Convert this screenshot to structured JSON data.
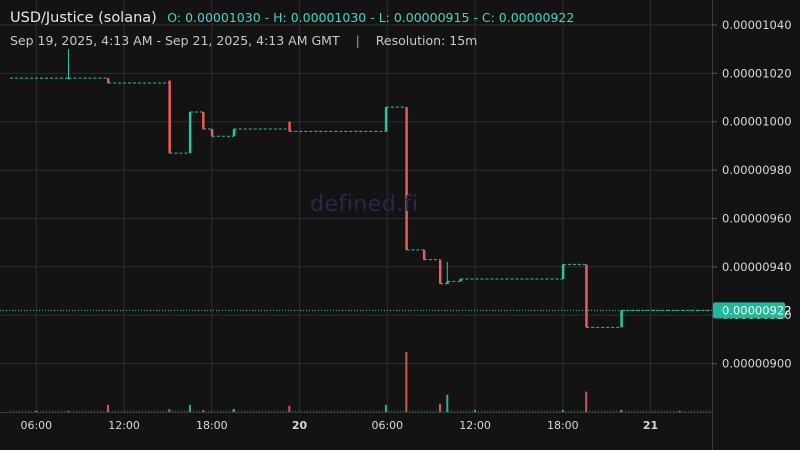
{
  "header": {
    "title": "USD/Justice (solana)",
    "ohlc_text": "O: 0.00001030 - H: 0.00001030 - L: 0.00000915 - C: 0.00000922",
    "range_text": "Sep 19, 2025, 4:13 AM - Sep 21, 2025, 4:13 AM GMT",
    "separator": "|",
    "resolution_text": "Resolution: 15m"
  },
  "watermark": "defined.fi",
  "colors": {
    "up": "#26c6a4",
    "down": "#ef5a5a",
    "background": "#131313",
    "grid": "#2e2e2e",
    "price_line": "#26c6a4"
  },
  "chart_data": {
    "type": "candlestick",
    "title": "USD/Justice (solana)",
    "y_axis_ticks": [
      "0.00001040",
      "0.00001020",
      "0.00001000",
      "0.00000980",
      "0.00000960",
      "0.00000940",
      "0.00000920",
      "0.00000900"
    ],
    "ylim": [
      8.8e-06,
      1.047e-05
    ],
    "x_axis_ticks": [
      {
        "label": "06:00",
        "hour": 6,
        "major": false
      },
      {
        "label": "12:00",
        "hour": 12,
        "major": false
      },
      {
        "label": "18:00",
        "hour": 18,
        "major": false
      },
      {
        "label": "20",
        "hour": 24,
        "major": true
      },
      {
        "label": "06:00",
        "hour": 30,
        "major": false
      },
      {
        "label": "12:00",
        "hour": 36,
        "major": false
      },
      {
        "label": "18:00",
        "hour": 42,
        "major": false
      },
      {
        "label": "21",
        "hour": 48,
        "major": true
      }
    ],
    "xlim_hours": [
      4.2,
      52.2
    ],
    "current_price": "0.00000922",
    "current_price_value": 9.22e-06,
    "candles": [
      {
        "hour": 8.2,
        "o": 1.018e-05,
        "h": 1.03e-05,
        "l": 1.018e-05,
        "c": 1.018e-05
      },
      {
        "hour": 10.9,
        "o": 1.018e-05,
        "h": 1.018e-05,
        "l": 1.016e-05,
        "c": 1.016e-05
      },
      {
        "hour": 15.1,
        "o": 1.017e-05,
        "h": 1.017e-05,
        "l": 9.87e-06,
        "c": 9.87e-06
      },
      {
        "hour": 16.5,
        "o": 9.87e-06,
        "h": 1.004e-05,
        "l": 9.87e-06,
        "c": 1.004e-05
      },
      {
        "hour": 17.4,
        "o": 1.004e-05,
        "h": 1.004e-05,
        "l": 9.97e-06,
        "c": 9.97e-06
      },
      {
        "hour": 18.0,
        "o": 9.97e-06,
        "h": 9.97e-06,
        "l": 9.94e-06,
        "c": 9.94e-06
      },
      {
        "hour": 19.5,
        "o": 9.94e-06,
        "h": 9.97e-06,
        "l": 9.94e-06,
        "c": 9.97e-06
      },
      {
        "hour": 23.3,
        "o": 1e-05,
        "h": 1e-05,
        "l": 9.96e-06,
        "c": 9.96e-06
      },
      {
        "hour": 29.9,
        "o": 9.96e-06,
        "h": 1.006e-05,
        "l": 9.96e-06,
        "c": 1.006e-05
      },
      {
        "hour": 31.3,
        "o": 1.006e-05,
        "h": 1.006e-05,
        "l": 9.47e-06,
        "c": 9.47e-06
      },
      {
        "hour": 32.5,
        "o": 9.47e-06,
        "h": 9.47e-06,
        "l": 9.43e-06,
        "c": 9.43e-06
      },
      {
        "hour": 33.6,
        "o": 9.43e-06,
        "h": 9.43e-06,
        "l": 9.33e-06,
        "c": 9.33e-06
      },
      {
        "hour": 34.1,
        "o": 9.33e-06,
        "h": 9.42e-06,
        "l": 9.33e-06,
        "c": 9.34e-06
      },
      {
        "hour": 35.0,
        "o": 9.34e-06,
        "h": 9.35e-06,
        "l": 9.34e-06,
        "c": 9.35e-06
      },
      {
        "hour": 42.0,
        "o": 9.35e-06,
        "h": 9.41e-06,
        "l": 9.35e-06,
        "c": 9.41e-06
      },
      {
        "hour": 43.6,
        "o": 9.41e-06,
        "h": 9.41e-06,
        "l": 9.15e-06,
        "c": 9.15e-06
      },
      {
        "hour": 46.0,
        "o": 9.15e-06,
        "h": 9.22e-06,
        "l": 9.15e-06,
        "c": 9.22e-06
      }
    ],
    "volume_bars": [
      {
        "hour": 6.0,
        "v": 1,
        "up": true
      },
      {
        "hour": 8.2,
        "v": 1,
        "up": false
      },
      {
        "hour": 10.9,
        "v": 7,
        "up": false
      },
      {
        "hour": 15.1,
        "v": 3,
        "up": false
      },
      {
        "hour": 16.5,
        "v": 7,
        "up": true
      },
      {
        "hour": 17.4,
        "v": 2,
        "up": false
      },
      {
        "hour": 19.5,
        "v": 3,
        "up": true
      },
      {
        "hour": 23.3,
        "v": 6,
        "up": false
      },
      {
        "hour": 29.9,
        "v": 7,
        "up": true
      },
      {
        "hour": 31.3,
        "v": 59,
        "up": false
      },
      {
        "hour": 33.6,
        "v": 8,
        "up": false
      },
      {
        "hour": 34.1,
        "v": 17,
        "up": true
      },
      {
        "hour": 36.0,
        "v": 2,
        "up": true
      },
      {
        "hour": 42.0,
        "v": 2,
        "up": true
      },
      {
        "hour": 43.6,
        "v": 20,
        "up": false
      },
      {
        "hour": 46.0,
        "v": 2,
        "up": true
      },
      {
        "hour": 50.0,
        "v": 1,
        "up": true
      }
    ]
  }
}
